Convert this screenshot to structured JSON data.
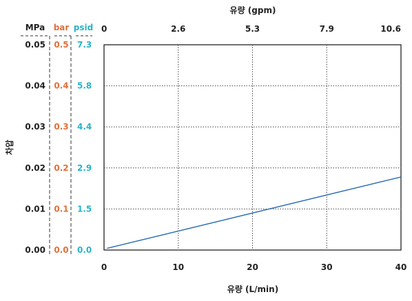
{
  "colors": {
    "line": "#2a6cb6",
    "mpa": "#222222",
    "bar": "#e0703a",
    "psid": "#2ab3c8",
    "grid": "#444444"
  },
  "chart_data": {
    "type": "line",
    "title": "",
    "xlabel": "유량 (L/min)",
    "x2label": "유량 (gpm)",
    "ylabel": "차압",
    "xlim": [
      0,
      40
    ],
    "ylim": [
      0,
      0.05
    ],
    "x_ticks": [
      "0",
      "10",
      "20",
      "30",
      "40"
    ],
    "x2_ticks": [
      "0",
      "2.6",
      "5.3",
      "7.9",
      "10.6"
    ],
    "y_axes": [
      {
        "unit": "MPa",
        "ticks": [
          "0.00",
          "0.01",
          "0.02",
          "0.03",
          "0.04",
          "0.05"
        ]
      },
      {
        "unit": "bar",
        "ticks": [
          "0.0",
          "0.1",
          "0.2",
          "0.3",
          "0.4",
          "0.5"
        ]
      },
      {
        "unit": "psid",
        "ticks": [
          "0.0",
          "1.5",
          "2.9",
          "4.4",
          "5.8",
          "7.3"
        ]
      }
    ],
    "grid": true,
    "series": [
      {
        "x": [
          0.4,
          40
        ],
        "y": [
          0.0004,
          0.0178
        ]
      }
    ]
  }
}
